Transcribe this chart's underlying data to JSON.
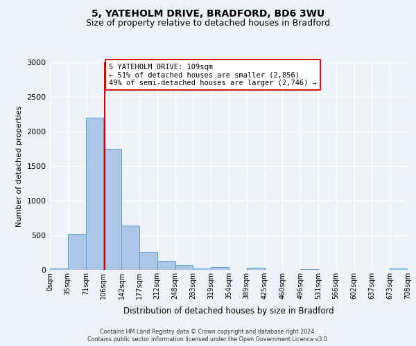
{
  "title": "5, YATEHOLM DRIVE, BRADFORD, BD6 3WU",
  "subtitle": "Size of property relative to detached houses in Bradford",
  "xlabel": "Distribution of detached houses by size in Bradford",
  "ylabel": "Number of detached properties",
  "bin_edges": [
    0,
    35,
    71,
    106,
    142,
    177,
    212,
    248,
    283,
    319,
    354,
    389,
    425,
    460,
    496,
    531,
    566,
    602,
    637,
    673,
    708
  ],
  "bin_counts": [
    20,
    520,
    2200,
    1750,
    640,
    260,
    130,
    70,
    20,
    40,
    0,
    30,
    0,
    0,
    15,
    0,
    0,
    0,
    0,
    20
  ],
  "bar_color": "#aec6e8",
  "bar_edgecolor": "#5a9fd4",
  "property_value": 109,
  "vline_color": "#cc0000",
  "ylim": [
    0,
    3000
  ],
  "yticks": [
    0,
    500,
    1000,
    1500,
    2000,
    2500,
    3000
  ],
  "annotation_text": "5 YATEHOLM DRIVE: 109sqm\n← 51% of detached houses are smaller (2,856)\n49% of semi-detached houses are larger (2,746) →",
  "annotation_box_edgecolor": "#cc0000",
  "annotation_box_facecolor": "#ffffff",
  "footer_line1": "Contains HM Land Registry data © Crown copyright and database right 2024.",
  "footer_line2": "Contains public sector information licensed under the Open Government Licence v3.0.",
  "background_color": "#eef2f8",
  "grid_color": "#ffffff",
  "tick_labels": [
    "0sqm",
    "35sqm",
    "71sqm",
    "106sqm",
    "142sqm",
    "177sqm",
    "212sqm",
    "248sqm",
    "283sqm",
    "319sqm",
    "354sqm",
    "389sqm",
    "425sqm",
    "460sqm",
    "496sqm",
    "531sqm",
    "566sqm",
    "602sqm",
    "637sqm",
    "673sqm",
    "708sqm"
  ]
}
